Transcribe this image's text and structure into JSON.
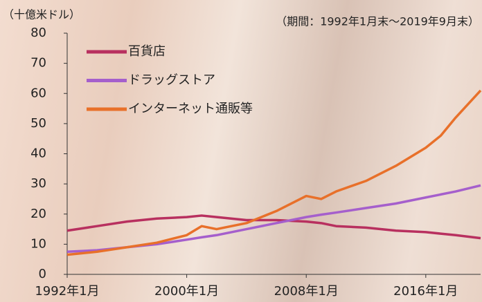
{
  "chart_data": {
    "type": "line",
    "unit_label": "（十億米ドル）",
    "note": "（期間：1992年1月末～2019年9月末）",
    "x": [
      1992,
      1994,
      1996,
      1998,
      2000,
      2001,
      2002,
      2004,
      2006,
      2008,
      2009,
      2010,
      2012,
      2014,
      2016,
      2017,
      2018,
      2019.67
    ],
    "series": [
      {
        "name": "百貨店",
        "color": "#b8305f",
        "values": [
          14.5,
          16,
          17.5,
          18.5,
          19,
          19.5,
          19,
          18,
          18,
          17.5,
          17,
          16,
          15.5,
          14.5,
          14,
          13.5,
          13,
          12
        ]
      },
      {
        "name": "ドラッグストア",
        "color": "#a55fcc",
        "values": [
          7.5,
          8,
          9,
          10,
          11.5,
          12.3,
          13,
          15,
          17,
          19,
          19.8,
          20.5,
          22,
          23.5,
          25.5,
          26.5,
          27.5,
          29.5
        ]
      },
      {
        "name": "インターネット通販等",
        "color": "#e8702a",
        "values": [
          6.5,
          7.5,
          9,
          10.5,
          13,
          16,
          15,
          17,
          21,
          26,
          25,
          27.5,
          31,
          36,
          42,
          46,
          52,
          61
        ]
      }
    ],
    "xlim": [
      1992,
      2019.67
    ],
    "xticks": [
      {
        "value": 1992,
        "label": "1992年1月"
      },
      {
        "value": 2000,
        "label": "2000年1月"
      },
      {
        "value": 2008,
        "label": "2008年1月"
      },
      {
        "value": 2016,
        "label": "2016年1月"
      }
    ],
    "ylim": [
      0,
      80
    ],
    "yticks": [
      0,
      10,
      20,
      30,
      40,
      50,
      60,
      70,
      80
    ],
    "legend": "top-left"
  }
}
